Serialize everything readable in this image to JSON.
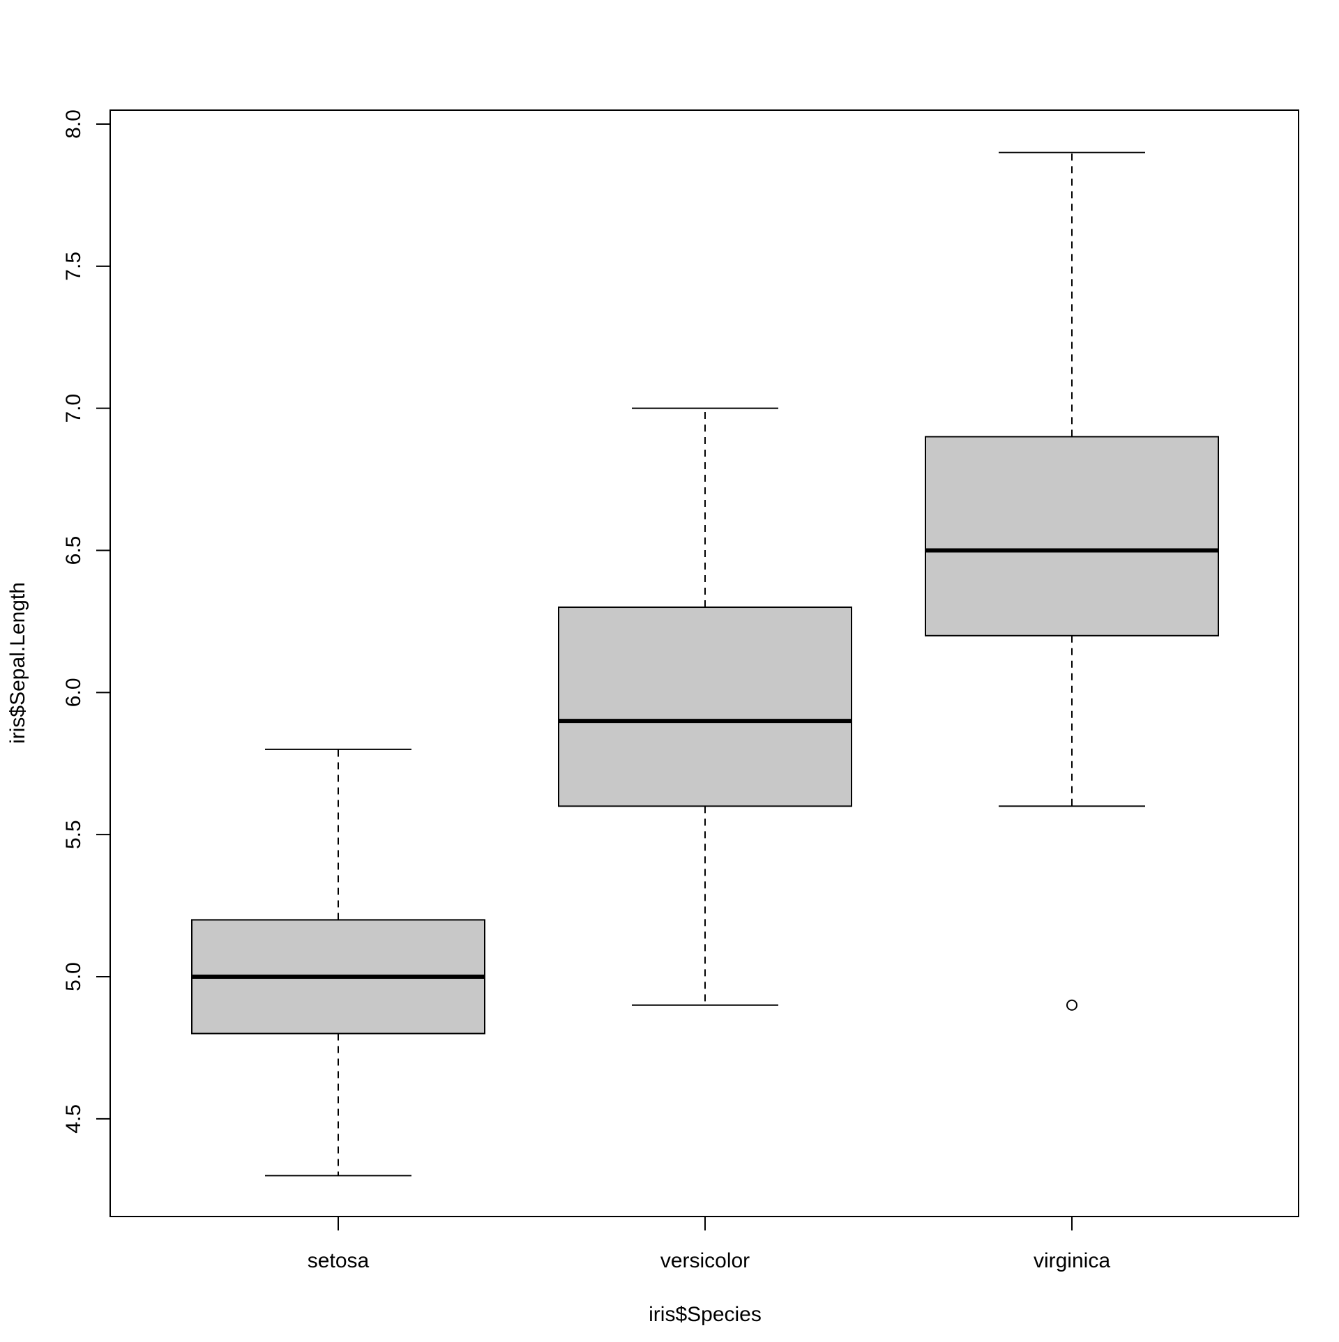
{
  "chart_data": {
    "type": "boxplot",
    "title": "",
    "xlabel": "iris$Species",
    "ylabel": "iris$Sepal.Length",
    "categories": [
      "setosa",
      "versicolor",
      "virginica"
    ],
    "ylim": [
      4.2,
      8.1
    ],
    "yticks": [
      4.5,
      5.0,
      5.5,
      6.0,
      6.5,
      7.0,
      7.5,
      8.0
    ],
    "ytick_labels": [
      "4.5",
      "5.0",
      "5.5",
      "6.0",
      "6.5",
      "7.0",
      "7.5",
      "8.0"
    ],
    "boxes": [
      {
        "category": "setosa",
        "whisker_low": 4.3,
        "q1": 4.8,
        "median": 5.0,
        "q3": 5.2,
        "whisker_high": 5.8,
        "outliers": []
      },
      {
        "category": "versicolor",
        "whisker_low": 4.9,
        "q1": 5.6,
        "median": 5.9,
        "q3": 6.3,
        "whisker_high": 7.0,
        "outliers": []
      },
      {
        "category": "virginica",
        "whisker_low": 5.6,
        "q1": 6.2,
        "median": 6.5,
        "q3": 6.9,
        "whisker_high": 7.9,
        "outliers": [
          4.9
        ]
      }
    ],
    "box_fill": "#c8c8c8",
    "line_color": "#000000",
    "grid": false,
    "legend": "none"
  }
}
